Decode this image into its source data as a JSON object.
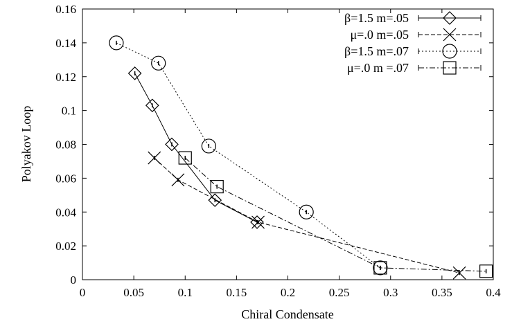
{
  "chart_data": {
    "type": "line",
    "title": "",
    "xlabel": "Chiral Condensate",
    "ylabel": "Polyakov Loop",
    "xlim": [
      0,
      0.4
    ],
    "ylim": [
      0,
      0.16
    ],
    "xticks": [
      0,
      0.05,
      0.1,
      0.15,
      0.2,
      0.25,
      0.3,
      0.35,
      0.4
    ],
    "xtick_labels": [
      "0",
      "0.05",
      "0.1",
      "0.15",
      "0.2",
      "0.25",
      "0.3",
      "0.35",
      "0.4"
    ],
    "yticks": [
      0,
      0.02,
      0.04,
      0.06,
      0.08,
      0.1,
      0.12,
      0.14,
      0.16
    ],
    "ytick_labels": [
      "0",
      "0.02",
      "0.04",
      "0.06",
      "0.08",
      "0.1",
      "0.12",
      "0.14",
      "0.16"
    ],
    "grid": false,
    "legend_position": "top-right",
    "series": [
      {
        "name": "β=1.5 m=.05",
        "marker": "diamond",
        "line_style": "solid",
        "x": [
          0.051,
          0.068,
          0.087,
          0.129,
          0.17
        ],
        "y": [
          0.122,
          0.103,
          0.08,
          0.047,
          0.034
        ]
      },
      {
        "name": "μ=.0 m=.05",
        "marker": "cross",
        "line_style": "dashed",
        "x": [
          0.07,
          0.093,
          0.171,
          0.367
        ],
        "y": [
          0.072,
          0.059,
          0.034,
          0.004
        ]
      },
      {
        "name": "β=1.5 m=.07",
        "marker": "circle",
        "line_style": "dotted",
        "x": [
          0.033,
          0.074,
          0.123,
          0.218,
          0.29
        ],
        "y": [
          0.14,
          0.128,
          0.079,
          0.04,
          0.007
        ]
      },
      {
        "name": "μ=.0 m =.07",
        "marker": "square",
        "line_style": "dashdot",
        "x": [
          0.1,
          0.131,
          0.29,
          0.393
        ],
        "y": [
          0.072,
          0.055,
          0.007,
          0.005
        ]
      }
    ]
  }
}
